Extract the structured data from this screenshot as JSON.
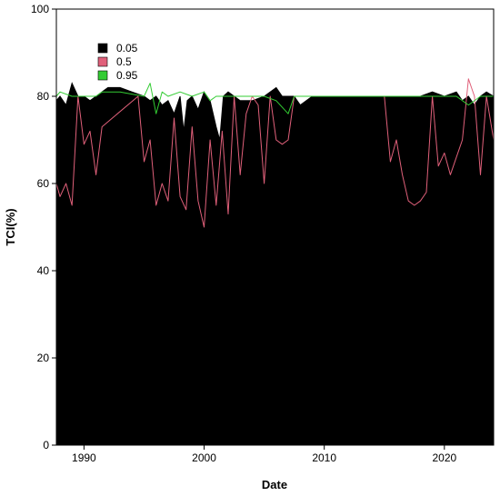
{
  "chart_data": {
    "type": "area",
    "title": "",
    "xlabel": "Date",
    "ylabel": "TCI(%)",
    "xlim": [
      1987.7,
      2024.1
    ],
    "ylim": [
      0,
      100
    ],
    "xticks": [
      1990,
      2000,
      2010,
      2020
    ],
    "yticks": [
      0,
      20,
      40,
      60,
      80,
      100
    ],
    "legend_position": "top-left",
    "grid": false,
    "series": [
      {
        "name": "0.05",
        "kind": "area",
        "color": "#000000",
        "x": [
          1987.7,
          1988.0,
          1988.5,
          1989.0,
          1989.5,
          1990.0,
          1990.5,
          1991.0,
          1991.5,
          1992.0,
          1993.0,
          1994.0,
          1995.0,
          1995.5,
          1996.0,
          1996.5,
          1997.0,
          1997.5,
          1998.0,
          1998.3,
          1998.6,
          1999.0,
          1999.5,
          2000.0,
          2000.5,
          2001.0,
          2001.3,
          2001.6,
          2002.0,
          2002.5,
          2003.0,
          2004.0,
          2005.0,
          2006.0,
          2006.5,
          2007.0,
          2007.5,
          2008.0,
          2009.0,
          2010.0,
          2012.0,
          2014.0,
          2015.0,
          2016.0,
          2017.0,
          2018.0,
          2019.0,
          2020.0,
          2021.0,
          2021.5,
          2022.0,
          2022.5,
          2023.0,
          2023.5,
          2024.1
        ],
        "y": [
          79,
          80,
          78,
          83,
          80,
          80,
          79,
          80,
          81,
          82,
          82,
          81,
          80,
          79,
          80,
          78,
          79,
          76,
          80,
          72,
          79,
          80,
          77,
          81,
          79,
          73,
          70,
          80,
          81,
          80,
          79,
          79,
          80,
          82,
          80,
          80,
          80,
          78,
          80,
          80,
          80,
          80,
          80,
          80,
          80,
          80,
          81,
          80,
          81,
          79,
          80,
          78,
          80,
          81,
          80
        ]
      },
      {
        "name": "0.5",
        "kind": "line",
        "color": "#e0607a",
        "x": [
          1987.7,
          1988.0,
          1988.5,
          1989.0,
          1989.5,
          1990.0,
          1990.5,
          1991.0,
          1991.5,
          1994.5,
          1995.0,
          1995.5,
          1996.0,
          1996.5,
          1997.0,
          1997.5,
          1998.0,
          1998.5,
          1999.0,
          1999.5,
          2000.0,
          2000.5,
          2001.0,
          2001.5,
          2002.0,
          2002.5,
          2003.0,
          2003.5,
          2004.0,
          2004.5,
          2005.0,
          2005.5,
          2006.0,
          2006.5,
          2007.0,
          2007.5,
          2008.0,
          2010.0,
          2015.0,
          2015.5,
          2016.0,
          2016.5,
          2017.0,
          2017.5,
          2018.0,
          2018.5,
          2019.0,
          2019.5,
          2020.0,
          2020.5,
          2021.0,
          2021.5,
          2022.0,
          2022.5,
          2023.0,
          2023.5,
          2024.1
        ],
        "y": [
          60,
          57,
          60,
          55,
          80,
          69,
          72,
          62,
          73,
          80,
          65,
          70,
          55,
          60,
          56,
          75,
          57,
          54,
          73,
          56,
          50,
          70,
          55,
          72,
          53,
          80,
          62,
          76,
          80,
          78,
          60,
          80,
          70,
          69,
          70,
          80,
          80,
          80,
          80,
          65,
          70,
          62,
          56,
          55,
          56,
          58,
          80,
          64,
          67,
          62,
          66,
          70,
          84,
          80,
          62,
          80,
          70
        ]
      },
      {
        "name": "0.95",
        "kind": "line",
        "color": "#33cc33",
        "x": [
          1987.7,
          1988.0,
          1989.0,
          1990.0,
          1991.0,
          1991.5,
          1993.0,
          1995.0,
          1995.5,
          1996.0,
          1996.5,
          1997.0,
          1998.0,
          1999.0,
          2000.0,
          2000.5,
          2001.0,
          2002.0,
          2003.0,
          2005.0,
          2006.0,
          2007.0,
          2007.5,
          2008.0,
          2010.0,
          2015.0,
          2018.0,
          2019.0,
          2020.0,
          2021.0,
          2022.0,
          2023.0,
          2024.1
        ],
        "y": [
          80,
          81,
          80,
          80,
          80,
          81,
          81,
          80,
          83,
          76,
          81,
          80,
          81,
          80,
          81,
          79,
          80,
          80,
          80,
          80,
          79,
          76,
          80,
          80,
          80,
          80,
          80,
          80,
          80,
          80,
          78,
          80,
          80
        ]
      }
    ]
  }
}
